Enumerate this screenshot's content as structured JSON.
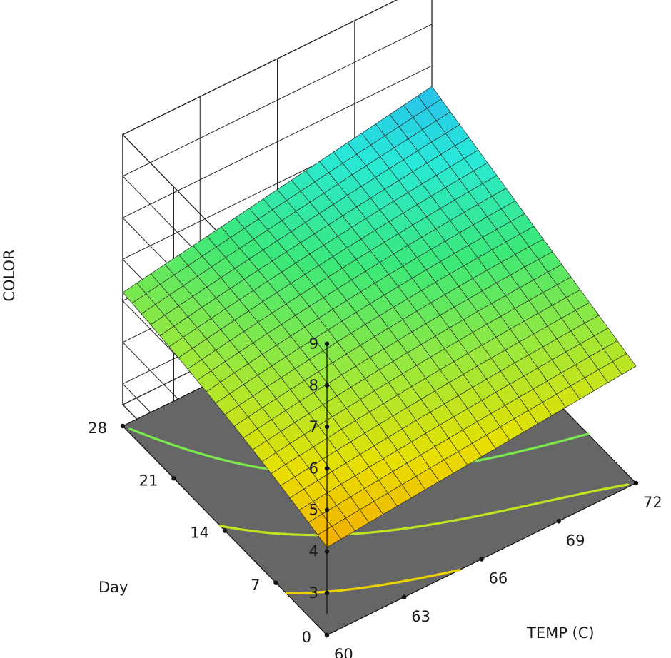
{
  "chart_data": {
    "type": "surface",
    "title": "",
    "zlabel": "COLOR",
    "xlabel": "TEMP (C)",
    "ylabel": "Day",
    "x_ticks": [
      60,
      63,
      66,
      69,
      72
    ],
    "x_tick_labels": [
      "60",
      "63",
      "66",
      "69",
      "72"
    ],
    "y_ticks": [
      0,
      7,
      14,
      21,
      28
    ],
    "y_tick_labels": [
      "0",
      "7",
      "14",
      "21",
      "28"
    ],
    "z_ticks": [
      3,
      4,
      5,
      6,
      7,
      8,
      9
    ],
    "z_tick_labels": [
      "3",
      "4",
      "5",
      "6",
      "7",
      "8",
      "9"
    ],
    "xlim": [
      60,
      72
    ],
    "ylim": [
      0,
      28
    ],
    "zlim": [
      2.5,
      9
    ],
    "grid": true,
    "surface_corners": [
      {
        "temp": 60,
        "day": 0,
        "color": 4.1
      },
      {
        "temp": 72,
        "day": 0,
        "color": 4.8
      },
      {
        "temp": 72,
        "day": 28,
        "color": 6.5
      },
      {
        "temp": 60,
        "day": 28,
        "color": 5.2
      }
    ],
    "colormap": [
      "#f5a000",
      "#e8e000",
      "#9ae83c",
      "#3ce878",
      "#28e8d8",
      "#28b4f0"
    ],
    "floor_color": "#666666"
  }
}
